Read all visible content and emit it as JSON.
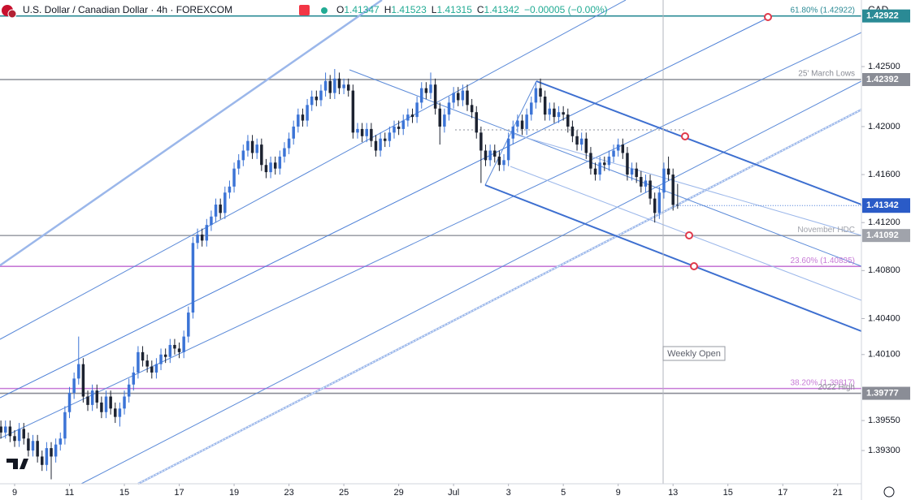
{
  "chart_data": {
    "type": "candlestick",
    "title": "U.S. Dollar / Canadian Dollar · 4h · FOREXCOM",
    "ohlc_labels": [
      "O",
      "H",
      "L",
      "C"
    ],
    "change": "−0.00005 (−0.00%)",
    "y_axis_label": "CAD",
    "annotation": "Weekly Open",
    "up_color": "#3c74d6",
    "down_color": "#1c2230",
    "xlim": [
      -3.2,
      185.2
    ],
    "ylim": [
      1.39023,
      1.43055
    ],
    "yticks": [
      {
        "value": 1.425,
        "label": "1.42500"
      },
      {
        "value": 1.42,
        "label": "1.42000"
      },
      {
        "value": 1.416,
        "label": "1.41600"
      },
      {
        "value": 1.412,
        "label": "1.41200"
      },
      {
        "value": 1.408,
        "label": "1.40800"
      },
      {
        "value": 1.404,
        "label": "1.40400"
      },
      {
        "value": 1.401,
        "label": "1.40100"
      },
      {
        "value": 1.3955,
        "label": "1.39550"
      },
      {
        "value": 1.393,
        "label": "1.39300"
      }
    ],
    "xticks": [
      {
        "value": 0,
        "label": "9"
      },
      {
        "value": 12,
        "label": "11"
      },
      {
        "value": 24,
        "label": "15"
      },
      {
        "value": 36,
        "label": "17"
      },
      {
        "value": 48,
        "label": "19"
      },
      {
        "value": 60,
        "label": "23"
      },
      {
        "value": 72,
        "label": "25"
      },
      {
        "value": 84,
        "label": "29"
      },
      {
        "value": 96,
        "label": "Jul"
      },
      {
        "value": 108,
        "label": "3"
      },
      {
        "value": 120,
        "label": "5"
      },
      {
        "value": 132,
        "label": "9"
      },
      {
        "value": 144,
        "label": "13"
      },
      {
        "value": 156,
        "label": "15"
      },
      {
        "value": 168,
        "label": "17"
      },
      {
        "value": 180,
        "label": "21"
      }
    ],
    "levels": [
      {
        "label": "61.80% (1.42922)",
        "value": 1.42922,
        "color": "#2a8a95",
        "axis_label": true
      },
      {
        "label": "25' March Lows",
        "value": 1.42392,
        "color": "#8a8d96",
        "axis_label": true
      },
      {
        "label": "November HDC",
        "value": 1.41092,
        "color": "#a0a3ab",
        "axis_label": true
      },
      {
        "label": "23.60% (1.40835)",
        "value": 1.40835,
        "color": "#c77ad6",
        "axis_label": false
      },
      {
        "label": "38.20% (1.39817)",
        "value": 1.39817,
        "color": "#c77ad6",
        "axis_label": false
      },
      {
        "label": "2022 High",
        "value": 1.39777,
        "color": "#8a8d96",
        "axis_label": true
      }
    ],
    "x": [
      -3,
      -2,
      -1,
      0,
      1,
      2,
      3,
      4,
      5,
      6,
      7,
      8,
      9,
      10,
      11,
      12,
      13,
      14,
      15,
      16,
      17,
      18,
      19,
      20,
      21,
      22,
      23,
      24,
      25,
      26,
      27,
      28,
      29,
      30,
      31,
      32,
      33,
      34,
      35,
      36,
      37,
      38,
      39,
      40,
      41,
      42,
      43,
      44,
      45,
      46,
      47,
      48,
      49,
      50,
      51,
      52,
      53,
      54,
      55,
      56,
      57,
      58,
      59,
      60,
      61,
      62,
      63,
      64,
      65,
      66,
      67,
      68,
      69,
      70,
      71,
      72,
      73,
      74,
      75,
      76,
      77,
      78,
      79,
      80,
      81,
      82,
      83,
      84,
      85,
      86,
      87,
      88,
      89,
      90,
      91,
      92,
      93,
      94,
      95,
      96,
      97,
      98,
      99,
      100,
      101,
      102,
      103,
      104,
      105,
      106,
      107,
      108,
      109,
      110,
      111,
      112,
      113,
      114,
      115,
      116,
      117,
      118,
      119,
      120,
      121,
      122,
      123,
      124,
      125,
      126,
      127,
      128,
      129,
      130,
      131,
      132,
      133,
      134,
      135,
      136,
      137,
      138,
      139,
      140,
      141,
      142,
      143,
      144,
      145
    ],
    "open": [
      1.395,
      1.3945,
      1.395,
      1.3942,
      1.3938,
      1.3948,
      1.394,
      1.393,
      1.3938,
      1.3925,
      1.3918,
      1.3932,
      1.3925,
      1.3935,
      1.394,
      1.3962,
      1.3978,
      1.399,
      1.4002,
      1.3975,
      1.3968,
      1.398,
      1.397,
      1.3962,
      1.3975,
      1.3965,
      1.3958,
      1.3965,
      1.3975,
      1.3985,
      1.3995,
      1.4012,
      1.4005,
      1.4,
      1.3995,
      1.4002,
      1.401,
      1.4008,
      1.4018,
      1.4015,
      1.4012,
      1.4025,
      1.4045,
      1.4103,
      1.411,
      1.4105,
      1.4118,
      1.4125,
      1.4135,
      1.4128,
      1.4145,
      1.415,
      1.4165,
      1.4172,
      1.418,
      1.4188,
      1.4178,
      1.4185,
      1.4168,
      1.4162,
      1.417,
      1.4165,
      1.4175,
      1.4182,
      1.419,
      1.42,
      1.421,
      1.4205,
      1.4218,
      1.4225,
      1.4222,
      1.423,
      1.4238,
      1.4228,
      1.424,
      1.4232,
      1.4235,
      1.423,
      1.4195,
      1.4198,
      1.4192,
      1.4198,
      1.4188,
      1.418,
      1.419,
      1.4188,
      1.4195,
      1.42,
      1.4198,
      1.4205,
      1.421,
      1.4208,
      1.422,
      1.4232,
      1.4228,
      1.4235,
      1.4215,
      1.42,
      1.421,
      1.422,
      1.4228,
      1.4222,
      1.423,
      1.4218,
      1.4212,
      1.4195,
      1.418,
      1.4172,
      1.418,
      1.4175,
      1.4168,
      1.4172,
      1.419,
      1.42,
      1.4205,
      1.4198,
      1.421,
      1.422,
      1.4232,
      1.4225,
      1.421,
      1.4215,
      1.4208,
      1.4212,
      1.421,
      1.42,
      1.4192,
      1.4185,
      1.419,
      1.4178,
      1.4165,
      1.416,
      1.417,
      1.4168,
      1.4175,
      1.418,
      1.4185,
      1.4178,
      1.416,
      1.4165,
      1.4158,
      1.415,
      1.4155,
      1.414,
      1.4128,
      1.4145,
      1.4165,
      1.416,
      1.41347
    ],
    "high": [
      1.3955,
      1.3955,
      1.3955,
      1.3947,
      1.3953,
      1.3953,
      1.3945,
      1.3943,
      1.3943,
      1.393,
      1.3937,
      1.3937,
      1.394,
      1.3945,
      1.3967,
      1.3983,
      1.3995,
      1.4025,
      1.4007,
      1.398,
      1.3985,
      1.3985,
      1.3975,
      1.398,
      1.398,
      1.397,
      1.397,
      1.398,
      1.399,
      1.4,
      1.4017,
      1.4017,
      1.401,
      1.4005,
      1.4007,
      1.4015,
      1.4015,
      1.4023,
      1.4023,
      1.402,
      1.403,
      1.405,
      1.4108,
      1.4115,
      1.4115,
      1.4123,
      1.413,
      1.414,
      1.414,
      1.415,
      1.4155,
      1.417,
      1.4177,
      1.4185,
      1.4193,
      1.4193,
      1.419,
      1.419,
      1.4173,
      1.4175,
      1.4175,
      1.418,
      1.4187,
      1.4195,
      1.4205,
      1.4215,
      1.4215,
      1.4223,
      1.423,
      1.423,
      1.4235,
      1.4245,
      1.4243,
      1.4248,
      1.4245,
      1.424,
      1.424,
      1.4235,
      1.4203,
      1.4203,
      1.4203,
      1.4203,
      1.4193,
      1.4195,
      1.4195,
      1.42,
      1.4205,
      1.4205,
      1.421,
      1.4215,
      1.4215,
      1.4225,
      1.4237,
      1.4237,
      1.4245,
      1.424,
      1.422,
      1.4215,
      1.4225,
      1.4233,
      1.4233,
      1.4235,
      1.4235,
      1.4223,
      1.4217,
      1.42,
      1.4185,
      1.4185,
      1.4185,
      1.418,
      1.4177,
      1.4195,
      1.4205,
      1.421,
      1.421,
      1.4215,
      1.4225,
      1.4237,
      1.424,
      1.423,
      1.422,
      1.422,
      1.4217,
      1.4217,
      1.4215,
      1.4205,
      1.4197,
      1.4195,
      1.4195,
      1.4183,
      1.417,
      1.4175,
      1.4175,
      1.418,
      1.4185,
      1.419,
      1.419,
      1.4183,
      1.417,
      1.417,
      1.4163,
      1.416,
      1.416,
      1.4145,
      1.415,
      1.417,
      1.4175,
      1.4165,
      1.41523
    ],
    "low": [
      1.394,
      1.394,
      1.3937,
      1.3933,
      1.3933,
      1.3935,
      1.3925,
      1.3925,
      1.392,
      1.3913,
      1.3913,
      1.3906,
      1.392,
      1.393,
      1.3935,
      1.3957,
      1.3973,
      1.3985,
      1.397,
      1.3963,
      1.3963,
      1.3965,
      1.3957,
      1.3957,
      1.396,
      1.3953,
      1.395,
      1.396,
      1.397,
      1.398,
      1.399,
      1.4,
      1.3995,
      1.399,
      1.399,
      1.3997,
      1.4003,
      1.4003,
      1.401,
      1.4007,
      1.4007,
      1.402,
      1.404,
      1.4098,
      1.41,
      1.41,
      1.4113,
      1.412,
      1.4123,
      1.4123,
      1.414,
      1.4145,
      1.416,
      1.4167,
      1.4175,
      1.4173,
      1.4173,
      1.4163,
      1.4157,
      1.4157,
      1.416,
      1.416,
      1.417,
      1.4177,
      1.4185,
      1.4195,
      1.42,
      1.42,
      1.4213,
      1.4217,
      1.4217,
      1.4225,
      1.4223,
      1.4223,
      1.4227,
      1.4227,
      1.4225,
      1.419,
      1.419,
      1.4187,
      1.4187,
      1.4183,
      1.4175,
      1.4175,
      1.4183,
      1.4183,
      1.419,
      1.4193,
      1.4193,
      1.42,
      1.4203,
      1.4203,
      1.4215,
      1.4223,
      1.4223,
      1.421,
      1.4185,
      1.4195,
      1.4205,
      1.4215,
      1.4217,
      1.4217,
      1.4213,
      1.4207,
      1.419,
      1.4153,
      1.4167,
      1.4167,
      1.417,
      1.4163,
      1.4163,
      1.4167,
      1.4185,
      1.4195,
      1.4193,
      1.4193,
      1.4205,
      1.4215,
      1.422,
      1.4205,
      1.4205,
      1.4203,
      1.4203,
      1.4205,
      1.4195,
      1.4187,
      1.418,
      1.418,
      1.4173,
      1.416,
      1.4155,
      1.4155,
      1.4163,
      1.4163,
      1.417,
      1.4175,
      1.4173,
      1.4155,
      1.4155,
      1.4153,
      1.4145,
      1.4145,
      1.4135,
      1.412,
      1.4123,
      1.414,
      1.4155,
      1.413,
      1.41315
    ],
    "close": [
      1.3945,
      1.395,
      1.3942,
      1.3938,
      1.3948,
      1.394,
      1.393,
      1.3938,
      1.3925,
      1.3918,
      1.3932,
      1.3925,
      1.3935,
      1.394,
      1.3962,
      1.3978,
      1.399,
      1.4002,
      1.3975,
      1.3968,
      1.398,
      1.397,
      1.3962,
      1.3975,
      1.3965,
      1.3958,
      1.3965,
      1.3975,
      1.3985,
      1.3995,
      1.4012,
      1.4005,
      1.4,
      1.3995,
      1.4002,
      1.401,
      1.4008,
      1.4018,
      1.4015,
      1.4012,
      1.4025,
      1.4045,
      1.4103,
      1.411,
      1.4105,
      1.4118,
      1.4125,
      1.4135,
      1.4128,
      1.4145,
      1.415,
      1.4165,
      1.4172,
      1.418,
      1.4188,
      1.4178,
      1.4185,
      1.4168,
      1.4162,
      1.417,
      1.4165,
      1.4175,
      1.4182,
      1.419,
      1.42,
      1.421,
      1.4205,
      1.4218,
      1.4225,
      1.4222,
      1.423,
      1.4238,
      1.4228,
      1.424,
      1.4232,
      1.4235,
      1.423,
      1.4195,
      1.4198,
      1.4192,
      1.4198,
      1.4188,
      1.418,
      1.419,
      1.4188,
      1.4195,
      1.42,
      1.4198,
      1.4205,
      1.421,
      1.4208,
      1.422,
      1.4232,
      1.4228,
      1.4235,
      1.4215,
      1.42,
      1.421,
      1.422,
      1.4228,
      1.4222,
      1.423,
      1.4218,
      1.4212,
      1.4195,
      1.418,
      1.4172,
      1.418,
      1.4175,
      1.4168,
      1.4172,
      1.419,
      1.42,
      1.4205,
      1.4198,
      1.421,
      1.422,
      1.4232,
      1.4225,
      1.421,
      1.4215,
      1.4208,
      1.4212,
      1.421,
      1.42,
      1.4192,
      1.4185,
      1.419,
      1.4178,
      1.4165,
      1.416,
      1.417,
      1.4168,
      1.4175,
      1.418,
      1.4185,
      1.4178,
      1.416,
      1.4165,
      1.4158,
      1.415,
      1.4155,
      1.414,
      1.4128,
      1.4145,
      1.4165,
      1.416,
      1.41347,
      1.41342
    ]
  }
}
